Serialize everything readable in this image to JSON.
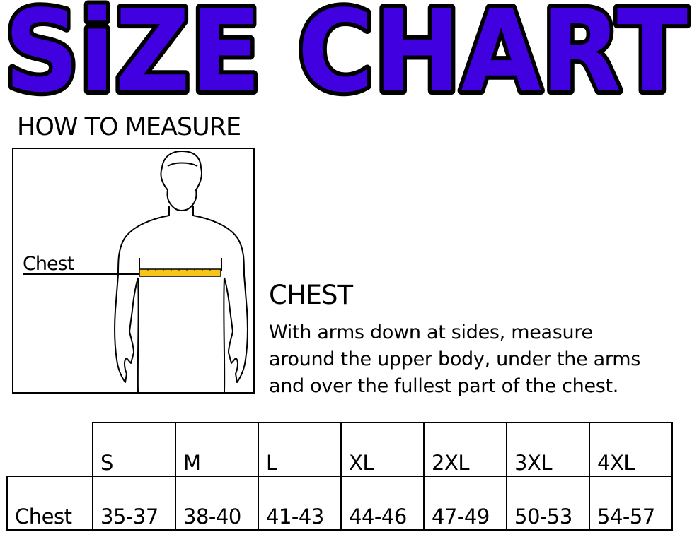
{
  "title": "SiZE CHART",
  "colors": {
    "title_fill": "#4000E0",
    "title_outline": "#000000",
    "tape": "#F5C518"
  },
  "how_to_measure": {
    "heading": "HOW TO MEASURE",
    "figure_label": "Chest"
  },
  "chest": {
    "heading": "CHEST",
    "description_lines": [
      "With arms down at sides, measure",
      "around the upper body, under the arms",
      "and over the fullest part of the chest."
    ]
  },
  "size_table": {
    "sizes": [
      "S",
      "M",
      "L",
      "XL",
      "2XL",
      "3XL",
      "4XL"
    ],
    "rows": [
      {
        "label": "Chest",
        "values": [
          "35-37",
          "38-40",
          "41-43",
          "44-46",
          "47-49",
          "50-53",
          "54-57"
        ]
      }
    ]
  }
}
